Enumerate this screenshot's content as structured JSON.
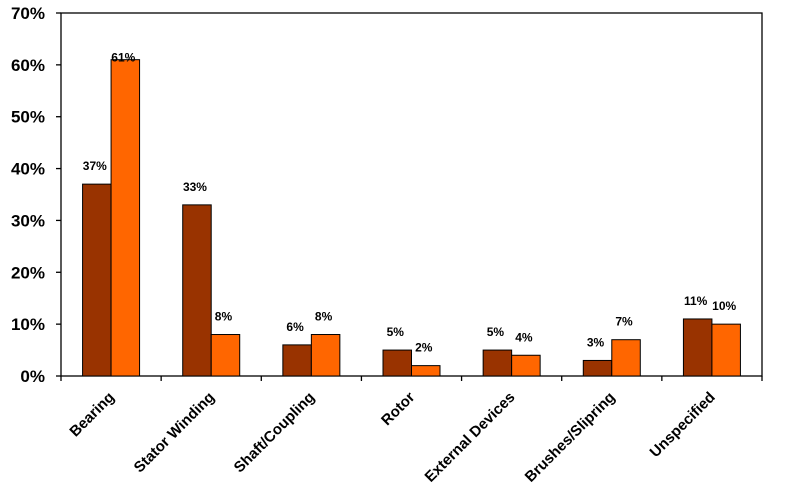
{
  "chart_data": {
    "type": "bar",
    "title": "",
    "xlabel": "",
    "ylabel": "",
    "ylim": [
      0,
      70
    ],
    "yticks": [
      "0%",
      "10%",
      "20%",
      "30%",
      "40%",
      "50%",
      "60%",
      "70%"
    ],
    "grid": false,
    "legend": null,
    "categories": [
      "Bearing",
      "Stator Winding",
      "Shaft/Coupling",
      "Rotor",
      "External Devices",
      "Brushes/Slipring",
      "Unspecified"
    ],
    "series": [
      {
        "name": "Series 1",
        "color": "#993300",
        "values": [
          37,
          33,
          6,
          5,
          5,
          3,
          11
        ],
        "labels": [
          "37%",
          "33%",
          "6%",
          "5%",
          "5%",
          "3%",
          "11%"
        ]
      },
      {
        "name": "Series 2",
        "color": "#FF6600",
        "values": [
          61,
          8,
          8,
          2,
          4,
          7,
          10
        ],
        "labels": [
          "61%",
          "8%",
          "8%",
          "2%",
          "4%",
          "7%",
          "10%"
        ]
      }
    ]
  }
}
